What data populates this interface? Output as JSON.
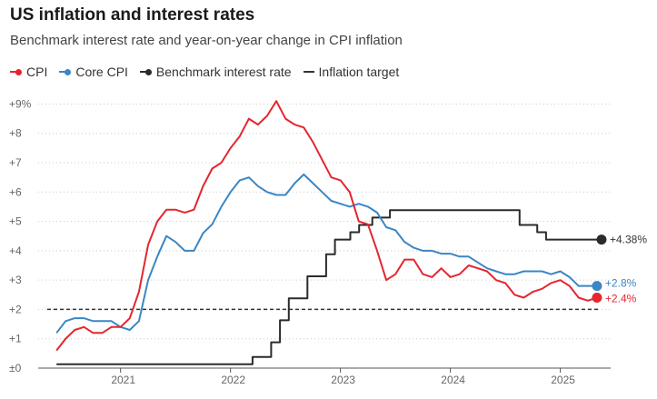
{
  "header": {
    "title": "US inflation and interest rates",
    "subtitle": "Benchmark interest rate and year-on-year change in CPI inflation"
  },
  "legend": {
    "items": [
      {
        "label": "CPI",
        "color": "#e4262f",
        "icon": "line-dot"
      },
      {
        "label": "Core CPI",
        "color": "#3b86c4",
        "icon": "line-dot"
      },
      {
        "label": "Benchmark interest rate",
        "color": "#2b2b2b",
        "icon": "line-dot"
      },
      {
        "label": "Inflation target",
        "color": "#333333",
        "icon": "dashed-line"
      }
    ]
  },
  "chart_data": {
    "type": "line",
    "title": "US inflation and interest rates",
    "subtitle": "Benchmark interest rate and year-on-year change in CPI inflation",
    "xlabel": "",
    "ylabel": "",
    "x_unit": "year",
    "xlim": [
      2020.333,
      2025.458
    ],
    "ylim": [
      0,
      9.2
    ],
    "y_ticks": [
      0,
      1,
      2,
      3,
      4,
      5,
      6,
      7,
      8,
      9
    ],
    "y_tick_labels": [
      "±0",
      "+1",
      "+2",
      "+3",
      "+4",
      "+5",
      "+6",
      "+7",
      "+8",
      "+9%"
    ],
    "x_ticks": [
      2021,
      2022,
      2023,
      2024,
      2025
    ],
    "x_tick_labels": [
      "2021",
      "2022",
      "2023",
      "2024",
      "2025"
    ],
    "grid": "horizontal-dotted",
    "series": [
      {
        "name": "CPI",
        "color": "#e4262f",
        "step": false,
        "start": 2020.417,
        "step_size": 0.08333,
        "values": [
          0.6,
          1.0,
          1.3,
          1.4,
          1.2,
          1.2,
          1.4,
          1.4,
          1.7,
          2.6,
          4.2,
          5.0,
          5.4,
          5.4,
          5.3,
          5.4,
          6.2,
          6.8,
          7.0,
          7.5,
          7.9,
          8.5,
          8.3,
          8.6,
          9.1,
          8.5,
          8.3,
          8.2,
          7.7,
          7.1,
          6.5,
          6.4,
          6.0,
          5.0,
          4.9,
          4.0,
          3.0,
          3.2,
          3.7,
          3.7,
          3.2,
          3.1,
          3.4,
          3.1,
          3.2,
          3.5,
          3.4,
          3.3,
          3.0,
          2.9,
          2.5,
          2.4,
          2.6,
          2.7,
          2.9,
          3.0,
          2.8,
          2.4,
          2.3,
          2.4
        ],
        "end_label": "+2.4%"
      },
      {
        "name": "Core CPI",
        "color": "#3b86c4",
        "step": false,
        "start": 2020.417,
        "step_size": 0.08333,
        "values": [
          1.2,
          1.6,
          1.7,
          1.7,
          1.6,
          1.6,
          1.6,
          1.4,
          1.3,
          1.6,
          3.0,
          3.8,
          4.5,
          4.3,
          4.0,
          4.0,
          4.6,
          4.9,
          5.5,
          6.0,
          6.4,
          6.5,
          6.2,
          6.0,
          5.9,
          5.9,
          6.3,
          6.6,
          6.3,
          6.0,
          5.7,
          5.6,
          5.5,
          5.6,
          5.5,
          5.3,
          4.8,
          4.7,
          4.3,
          4.1,
          4.0,
          4.0,
          3.9,
          3.9,
          3.8,
          3.8,
          3.6,
          3.4,
          3.3,
          3.2,
          3.2,
          3.3,
          3.3,
          3.3,
          3.2,
          3.3,
          3.1,
          2.8,
          2.8,
          2.8
        ],
        "end_label": "+2.8%"
      },
      {
        "name": "Benchmark interest rate",
        "color": "#2b2b2b",
        "step": true,
        "points": [
          [
            2020.417,
            0.13
          ],
          [
            2022.2,
            0.13
          ],
          [
            2022.2,
            0.38
          ],
          [
            2022.37,
            0.38
          ],
          [
            2022.37,
            0.88
          ],
          [
            2022.45,
            0.88
          ],
          [
            2022.45,
            1.63
          ],
          [
            2022.53,
            1.63
          ],
          [
            2022.53,
            2.38
          ],
          [
            2022.7,
            2.38
          ],
          [
            2022.7,
            3.13
          ],
          [
            2022.87,
            3.13
          ],
          [
            2022.87,
            3.88
          ],
          [
            2022.95,
            3.88
          ],
          [
            2022.95,
            4.38
          ],
          [
            2023.09,
            4.38
          ],
          [
            2023.09,
            4.63
          ],
          [
            2023.17,
            4.63
          ],
          [
            2023.17,
            4.88
          ],
          [
            2023.29,
            4.88
          ],
          [
            2023.29,
            5.13
          ],
          [
            2023.45,
            5.13
          ],
          [
            2023.45,
            5.38
          ],
          [
            2024.63,
            5.38
          ],
          [
            2024.63,
            4.88
          ],
          [
            2024.79,
            4.88
          ],
          [
            2024.79,
            4.63
          ],
          [
            2024.87,
            4.63
          ],
          [
            2024.87,
            4.38
          ],
          [
            2025.375,
            4.38
          ]
        ],
        "end_label": "+4.38%"
      },
      {
        "name": "Inflation target",
        "color": "#333333",
        "dashed": true,
        "value": 2.0
      }
    ]
  }
}
